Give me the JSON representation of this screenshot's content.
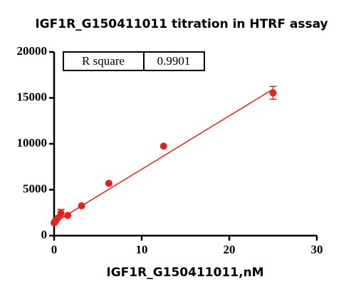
{
  "chart_data": {
    "type": "scatter",
    "title": "IGF1R_G150411011 titration in  HTRF assay",
    "x_label": "IGF1R_G150411011,nM",
    "stats_table": [
      [
        "R square",
        "0.9901"
      ]
    ],
    "x": [
      0,
      0.049,
      0.098,
      0.195,
      0.39,
      0.78,
      1.5625,
      3.125,
      6.25,
      12.5,
      25
    ],
    "series": [
      {
        "values": [
          1400,
          1450,
          1550,
          1650,
          1900,
          2450,
          2200,
          3250,
          5700,
          9750,
          15550
        ],
        "errors": [
          0,
          0,
          0,
          0,
          0,
          400,
          0,
          0,
          0,
          0,
          700
        ],
        "color": "#e8201c"
      }
    ],
    "fit": {
      "x": [
        0,
        25
      ],
      "values": [
        1420,
        15950
      ],
      "color": "#e8201c"
    },
    "xlim": [
      0,
      30
    ],
    "xticks": [
      0,
      10,
      20,
      30
    ],
    "ylim": [
      0,
      20000
    ],
    "yticks": [
      0,
      5000,
      10000,
      15000,
      20000
    ]
  }
}
